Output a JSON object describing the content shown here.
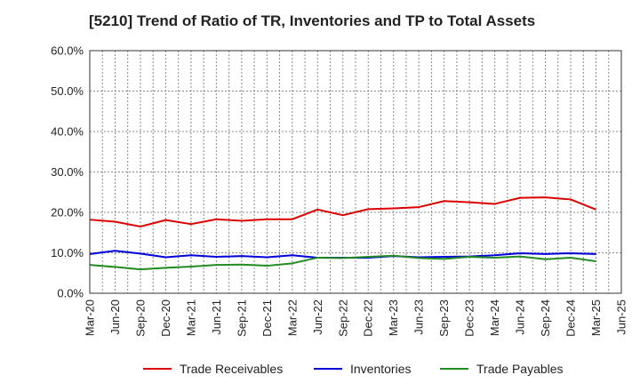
{
  "chart_data": {
    "type": "line",
    "title": "[5210]  Trend of Ratio of TR, Inventories and TP to Total Assets",
    "xlabel": "",
    "ylabel": "",
    "ylim": [
      0,
      60
    ],
    "yticks": [
      "0.0%",
      "10.0%",
      "20.0%",
      "30.0%",
      "40.0%",
      "50.0%",
      "60.0%"
    ],
    "x_tick_labels": [
      "Mar-20",
      "Jun-20",
      "Sep-20",
      "Dec-20",
      "Mar-21",
      "Jun-21",
      "Sep-21",
      "Dec-21",
      "Mar-22",
      "Jun-22",
      "Sep-22",
      "Dec-22",
      "Mar-23",
      "Jun-23",
      "Sep-23",
      "Dec-23",
      "Mar-24",
      "Jun-24",
      "Sep-24",
      "Dec-24",
      "Mar-25",
      "Jun-25"
    ],
    "categories": [
      "Mar-20",
      "Jun-20",
      "Sep-20",
      "Dec-20",
      "Mar-21",
      "Jun-21",
      "Sep-21",
      "Dec-21",
      "Mar-22",
      "Jun-22",
      "Sep-22",
      "Dec-22",
      "Mar-23",
      "Jun-23",
      "Sep-23",
      "Dec-23",
      "Mar-24",
      "Jun-24",
      "Sep-24",
      "Dec-24",
      "Mar-25"
    ],
    "grid": true,
    "legend_position": "bottom",
    "series": [
      {
        "name": "Trade Receivables",
        "color": "#dd0000",
        "values": [
          18.2,
          17.7,
          16.5,
          18.1,
          17.1,
          18.3,
          17.9,
          18.3,
          18.3,
          20.7,
          19.3,
          20.8,
          21.0,
          21.3,
          22.8,
          22.5,
          22.1,
          23.6,
          23.7,
          23.2,
          20.7
        ]
      },
      {
        "name": "Inventories",
        "color": "#0000dd",
        "values": [
          9.7,
          10.5,
          9.8,
          8.9,
          9.4,
          9.0,
          9.2,
          8.9,
          9.4,
          8.8,
          8.8,
          8.8,
          9.2,
          8.9,
          9.0,
          9.1,
          9.4,
          9.9,
          9.7,
          9.9,
          9.7
        ]
      },
      {
        "name": "Trade Payables",
        "color": "#228b22",
        "values": [
          7.0,
          6.5,
          5.9,
          6.3,
          6.6,
          7.0,
          7.1,
          6.8,
          7.4,
          8.8,
          8.7,
          9.0,
          9.3,
          8.7,
          8.5,
          9.0,
          8.8,
          9.1,
          8.4,
          8.8,
          7.9
        ]
      }
    ]
  }
}
